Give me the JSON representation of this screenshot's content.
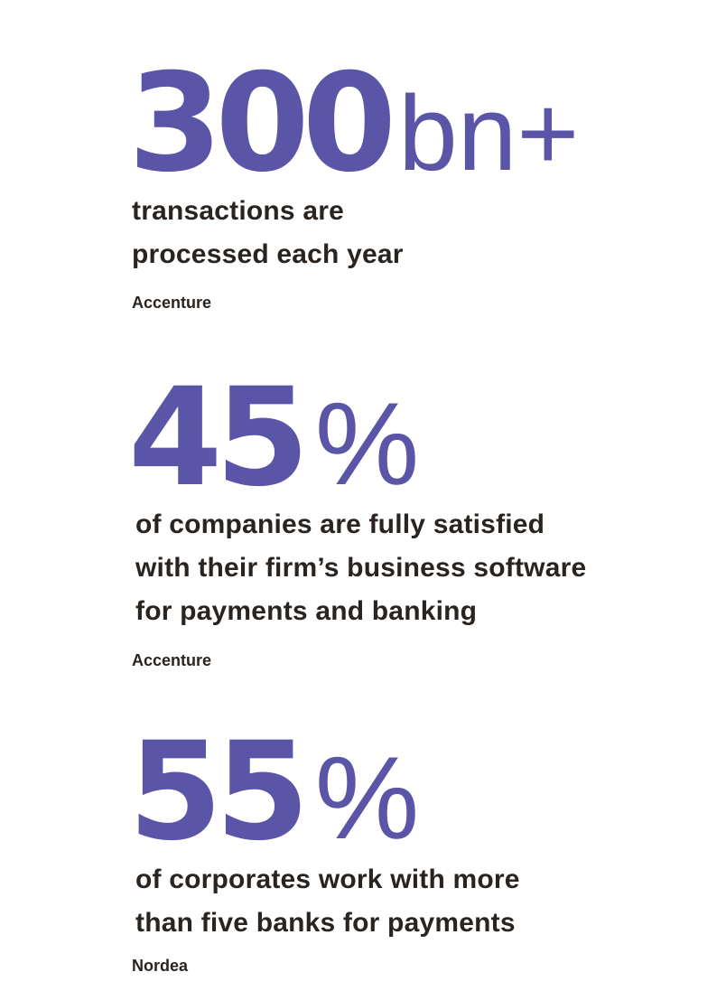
{
  "stats": [
    {
      "number": "300",
      "unit": "bn+",
      "description_lines": [
        "transactions are",
        "processed each year"
      ],
      "source": "Accenture"
    },
    {
      "number": "45",
      "unit": "%",
      "description_lines": [
        "of companies are fully satisfied",
        "with their firm’s business software",
        "for payments and banking"
      ],
      "source": "Accenture"
    },
    {
      "number": "55",
      "unit": "%",
      "description_lines": [
        "of corporates work with more",
        "than five banks for payments"
      ],
      "source": "Nordea"
    }
  ],
  "colors": {
    "accent": "#5b55a8",
    "text": "#2a2420",
    "background": "#ffffff"
  }
}
